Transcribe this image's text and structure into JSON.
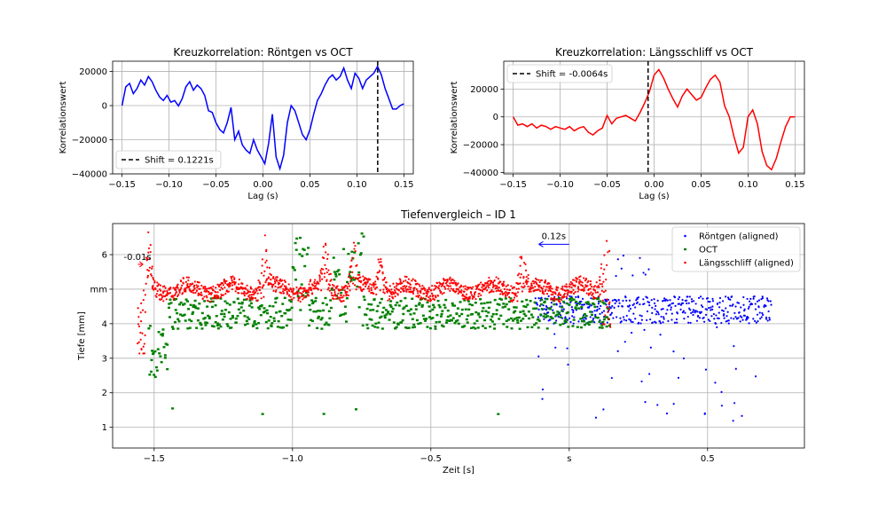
{
  "chart_data": [
    {
      "type": "line",
      "title": "Kreuzkorrelation: Röntgen vs OCT",
      "xlabel": "Lag (s)",
      "ylabel": "Korrelationswert",
      "xlim": [
        -0.16,
        0.16
      ],
      "ylim": [
        -40000,
        26000
      ],
      "xticks": [
        -0.15,
        -0.1,
        -0.05,
        0.0,
        0.05,
        0.1,
        0.15
      ],
      "xtick_labels": [
        "−0.15",
        "−0.10",
        "−0.05",
        "0.00",
        "0.05",
        "0.10",
        "0.15"
      ],
      "yticks": [
        -40000,
        -20000,
        0,
        20000
      ],
      "ytick_labels": [
        "−40000",
        "−20000",
        "0",
        "20000"
      ],
      "grid": true,
      "legend_position": "lower-left",
      "series": [
        {
          "color": "#0000ff",
          "x": [
            -0.15,
            -0.146,
            -0.142,
            -0.138,
            -0.134,
            -0.13,
            -0.126,
            -0.122,
            -0.118,
            -0.114,
            -0.11,
            -0.106,
            -0.102,
            -0.098,
            -0.094,
            -0.09,
            -0.086,
            -0.082,
            -0.078,
            -0.074,
            -0.07,
            -0.066,
            -0.062,
            -0.058,
            -0.054,
            -0.05,
            -0.046,
            -0.042,
            -0.038,
            -0.034,
            -0.03,
            -0.026,
            -0.022,
            -0.018,
            -0.014,
            -0.01,
            -0.006,
            -0.002,
            0.002,
            0.006,
            0.01,
            0.014,
            0.018,
            0.022,
            0.026,
            0.03,
            0.034,
            0.038,
            0.042,
            0.046,
            0.05,
            0.054,
            0.058,
            0.062,
            0.066,
            0.07,
            0.074,
            0.078,
            0.082,
            0.086,
            0.09,
            0.094,
            0.098,
            0.102,
            0.106,
            0.11,
            0.114,
            0.118,
            0.122,
            0.126,
            0.13,
            0.134,
            0.138,
            0.142,
            0.146,
            0.15
          ],
          "y": [
            0,
            11000,
            13000,
            7000,
            10000,
            15000,
            12000,
            17000,
            14000,
            9000,
            5000,
            3000,
            6000,
            2000,
            3000,
            -200,
            4000,
            11000,
            14000,
            9000,
            12000,
            10000,
            6000,
            -3000,
            -4000,
            -10000,
            -14000,
            -16000,
            -10000,
            -1000,
            -20000,
            -15000,
            -23000,
            -26000,
            -28000,
            -20000,
            -26000,
            -30000,
            -34000,
            -22000,
            -5000,
            -30000,
            -37000,
            -29000,
            -10000,
            0,
            -3000,
            -10000,
            -17000,
            -20000,
            -14000,
            -5000,
            3000,
            7000,
            12000,
            16000,
            18000,
            15000,
            17000,
            22000,
            15000,
            10000,
            19000,
            16000,
            10000,
            15000,
            17000,
            19000,
            23000,
            18000,
            10000,
            4000,
            -2000,
            -2000,
            0,
            1000
          ]
        }
      ],
      "shift_line": {
        "x": 0.1221,
        "label": "Shift = 0.1221s"
      }
    },
    {
      "type": "line",
      "title": "Kreuzkorrelation: Längsschliff vs OCT",
      "xlabel": "Lag (s)",
      "ylabel": "Korrelationswert",
      "xlim": [
        -0.16,
        0.16
      ],
      "ylim": [
        -41000,
        40000
      ],
      "xticks": [
        -0.15,
        -0.1,
        -0.05,
        0.0,
        0.05,
        0.1,
        0.15
      ],
      "xtick_labels": [
        "−0.15",
        "−0.10",
        "−0.05",
        "0.00",
        "0.05",
        "0.10",
        "0.15"
      ],
      "yticks": [
        -40000,
        -20000,
        0,
        20000
      ],
      "ytick_labels": [
        "−40000",
        "−20000",
        "0",
        "20000"
      ],
      "grid": true,
      "legend_position": "upper-left",
      "series": [
        {
          "color": "#ff0000",
          "x": [
            -0.15,
            -0.145,
            -0.14,
            -0.135,
            -0.13,
            -0.125,
            -0.12,
            -0.115,
            -0.11,
            -0.105,
            -0.1,
            -0.095,
            -0.09,
            -0.085,
            -0.08,
            -0.075,
            -0.07,
            -0.065,
            -0.06,
            -0.055,
            -0.05,
            -0.045,
            -0.04,
            -0.035,
            -0.03,
            -0.025,
            -0.02,
            -0.015,
            -0.01,
            -0.005,
            0.0,
            0.005,
            0.01,
            0.015,
            0.02,
            0.025,
            0.03,
            0.035,
            0.04,
            0.045,
            0.05,
            0.055,
            0.06,
            0.065,
            0.07,
            0.075,
            0.08,
            0.085,
            0.09,
            0.095,
            0.1,
            0.105,
            0.11,
            0.115,
            0.12,
            0.125,
            0.13,
            0.135,
            0.14,
            0.145,
            0.15
          ],
          "y": [
            0,
            -6000,
            -5000,
            -7000,
            -5000,
            -8000,
            -6000,
            -7000,
            -9000,
            -7000,
            -8000,
            -9000,
            -7000,
            -10000,
            -8000,
            -7000,
            -11000,
            -13000,
            -10000,
            -8000,
            1000,
            -5000,
            -1000,
            0,
            1000,
            -1000,
            -3000,
            3000,
            10000,
            18000,
            30000,
            34000,
            28000,
            20000,
            13000,
            7000,
            15000,
            20000,
            16000,
            12000,
            14000,
            21000,
            27000,
            30000,
            25000,
            8000,
            0,
            -14000,
            -26000,
            -22000,
            0,
            5000,
            -5000,
            -25000,
            -35000,
            -38000,
            -30000,
            -18000,
            -7000,
            0,
            0
          ]
        }
      ],
      "shift_line": {
        "x": -0.0064,
        "label": "Shift = -0.0064s"
      }
    },
    {
      "type": "scatter",
      "title": "Tiefenvergleich – ID 1",
      "xlabel": "Zeit [s]",
      "ylabel": "Tiefe [mm]",
      "xlim": [
        -1.65,
        0.85
      ],
      "ylim": [
        0.4,
        6.9
      ],
      "xticks": [
        -1.5,
        -1.0,
        -0.5,
        0.0,
        0.5
      ],
      "xtick_labels": [
        "−1.5",
        "−1.0",
        "−0.5",
        "s",
        "0.5"
      ],
      "yticks": [
        1,
        2,
        3,
        4,
        5,
        6
      ],
      "ytick_labels": [
        "1",
        "2",
        "3",
        "4",
        "mm",
        "6"
      ],
      "grid": true,
      "legend_position": "upper-right",
      "series": [
        {
          "name": "Röntgen (aligned)",
          "color": "#0000ff",
          "x_range": [
            -0.12,
            0.73
          ],
          "base": 4.4
        },
        {
          "name": "OCT",
          "color": "#008000",
          "x_range": [
            -1.52,
            0.15
          ],
          "base": 4.3
        },
        {
          "name": "Längsschliff (aligned)",
          "color": "#ff0000",
          "x_range": [
            -1.56,
            0.15
          ],
          "base": 5.0
        }
      ],
      "annotations": [
        {
          "text": "-0.01s",
          "x": -1.56,
          "y": 5.85
        },
        {
          "text": "0.12s",
          "x": -0.1,
          "y": 6.45
        }
      ]
    }
  ]
}
